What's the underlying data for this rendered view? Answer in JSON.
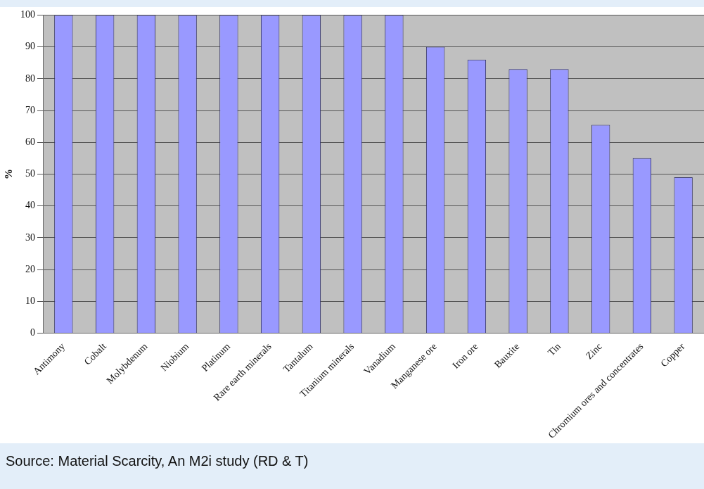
{
  "chart_data": {
    "type": "bar",
    "ylabel": "%",
    "categories": [
      "Antimony",
      "Cobalt",
      "Molybdenum",
      "Niobium",
      "Platinum",
      "Rare earth minerals",
      "Tantalum",
      "Titanium minerals",
      "Vanadium",
      "Manganese ore",
      "Iron ore",
      "Bauxite",
      "Tin",
      "Zinc",
      "Chromium ores and concentrates",
      "Copper"
    ],
    "values": [
      100,
      100,
      100,
      100,
      100,
      100,
      100,
      100,
      100,
      90,
      86,
      83,
      83,
      65.5,
      55,
      49
    ],
    "color": "#9999ff",
    "ylim": [
      0,
      100
    ],
    "yticks": [
      0,
      10,
      20,
      30,
      40,
      50,
      60,
      70,
      80,
      90,
      100
    ],
    "grid": "y",
    "annotations": [
      "Source: Material Scarcity, An M2i study (RD & T)"
    ]
  }
}
